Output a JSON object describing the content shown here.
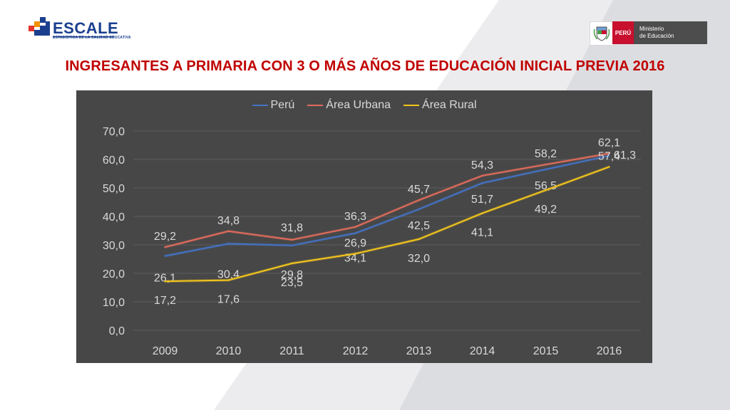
{
  "header": {
    "logo_text": "ESCALE",
    "logo_subtitle": "ESTADÍSTICA DE LA CALIDAD EDUCATIVA",
    "ministry_country": "PERÚ",
    "ministry_name_line1": "Ministerio",
    "ministry_name_line2": "de Educación"
  },
  "page": {
    "title": "INGRESANTES A PRIMARIA CON 3 O MÁS AÑOS DE EDUCACIÓN INICIAL PREVIA 2016"
  },
  "colors": {
    "peru": "#4472c4",
    "urbana": "#e06c5c",
    "rural": "#f2c51c",
    "title": "#c00000",
    "chart_bg": "#474747"
  },
  "chart_data": {
    "type": "line",
    "categories": [
      "2009",
      "2010",
      "2011",
      "2012",
      "2013",
      "2014",
      "2015",
      "2016"
    ],
    "ylim": [
      0,
      70
    ],
    "yticks": [
      "0,0",
      "10,0",
      "20,0",
      "30,0",
      "40,0",
      "50,0",
      "60,0",
      "70,0"
    ],
    "grid": true,
    "legend_position": "top",
    "series": [
      {
        "name": "Perú",
        "values": [
          26.1,
          30.4,
          29.8,
          34.1,
          42.5,
          51.7,
          56.5,
          61.3
        ],
        "labels": [
          "26,1",
          "30,4",
          "29,8",
          "34,1",
          "42,5",
          "51,7",
          "56,5",
          "61,3"
        ]
      },
      {
        "name": "Área Urbana",
        "values": [
          29.2,
          34.8,
          31.8,
          36.3,
          45.7,
          54.3,
          58.2,
          62.1
        ],
        "labels": [
          "29,2",
          "34,8",
          "31,8",
          "36,3",
          "45,7",
          "54,3",
          "58,2",
          "62,1"
        ]
      },
      {
        "name": "Área Rural",
        "values": [
          17.2,
          17.6,
          23.5,
          26.9,
          32.0,
          41.1,
          49.2,
          57.4
        ],
        "labels": [
          "17,2",
          "17,6",
          "23,5",
          "26,9",
          "32,0",
          "41,1",
          "49,2",
          "57,4"
        ]
      }
    ]
  }
}
